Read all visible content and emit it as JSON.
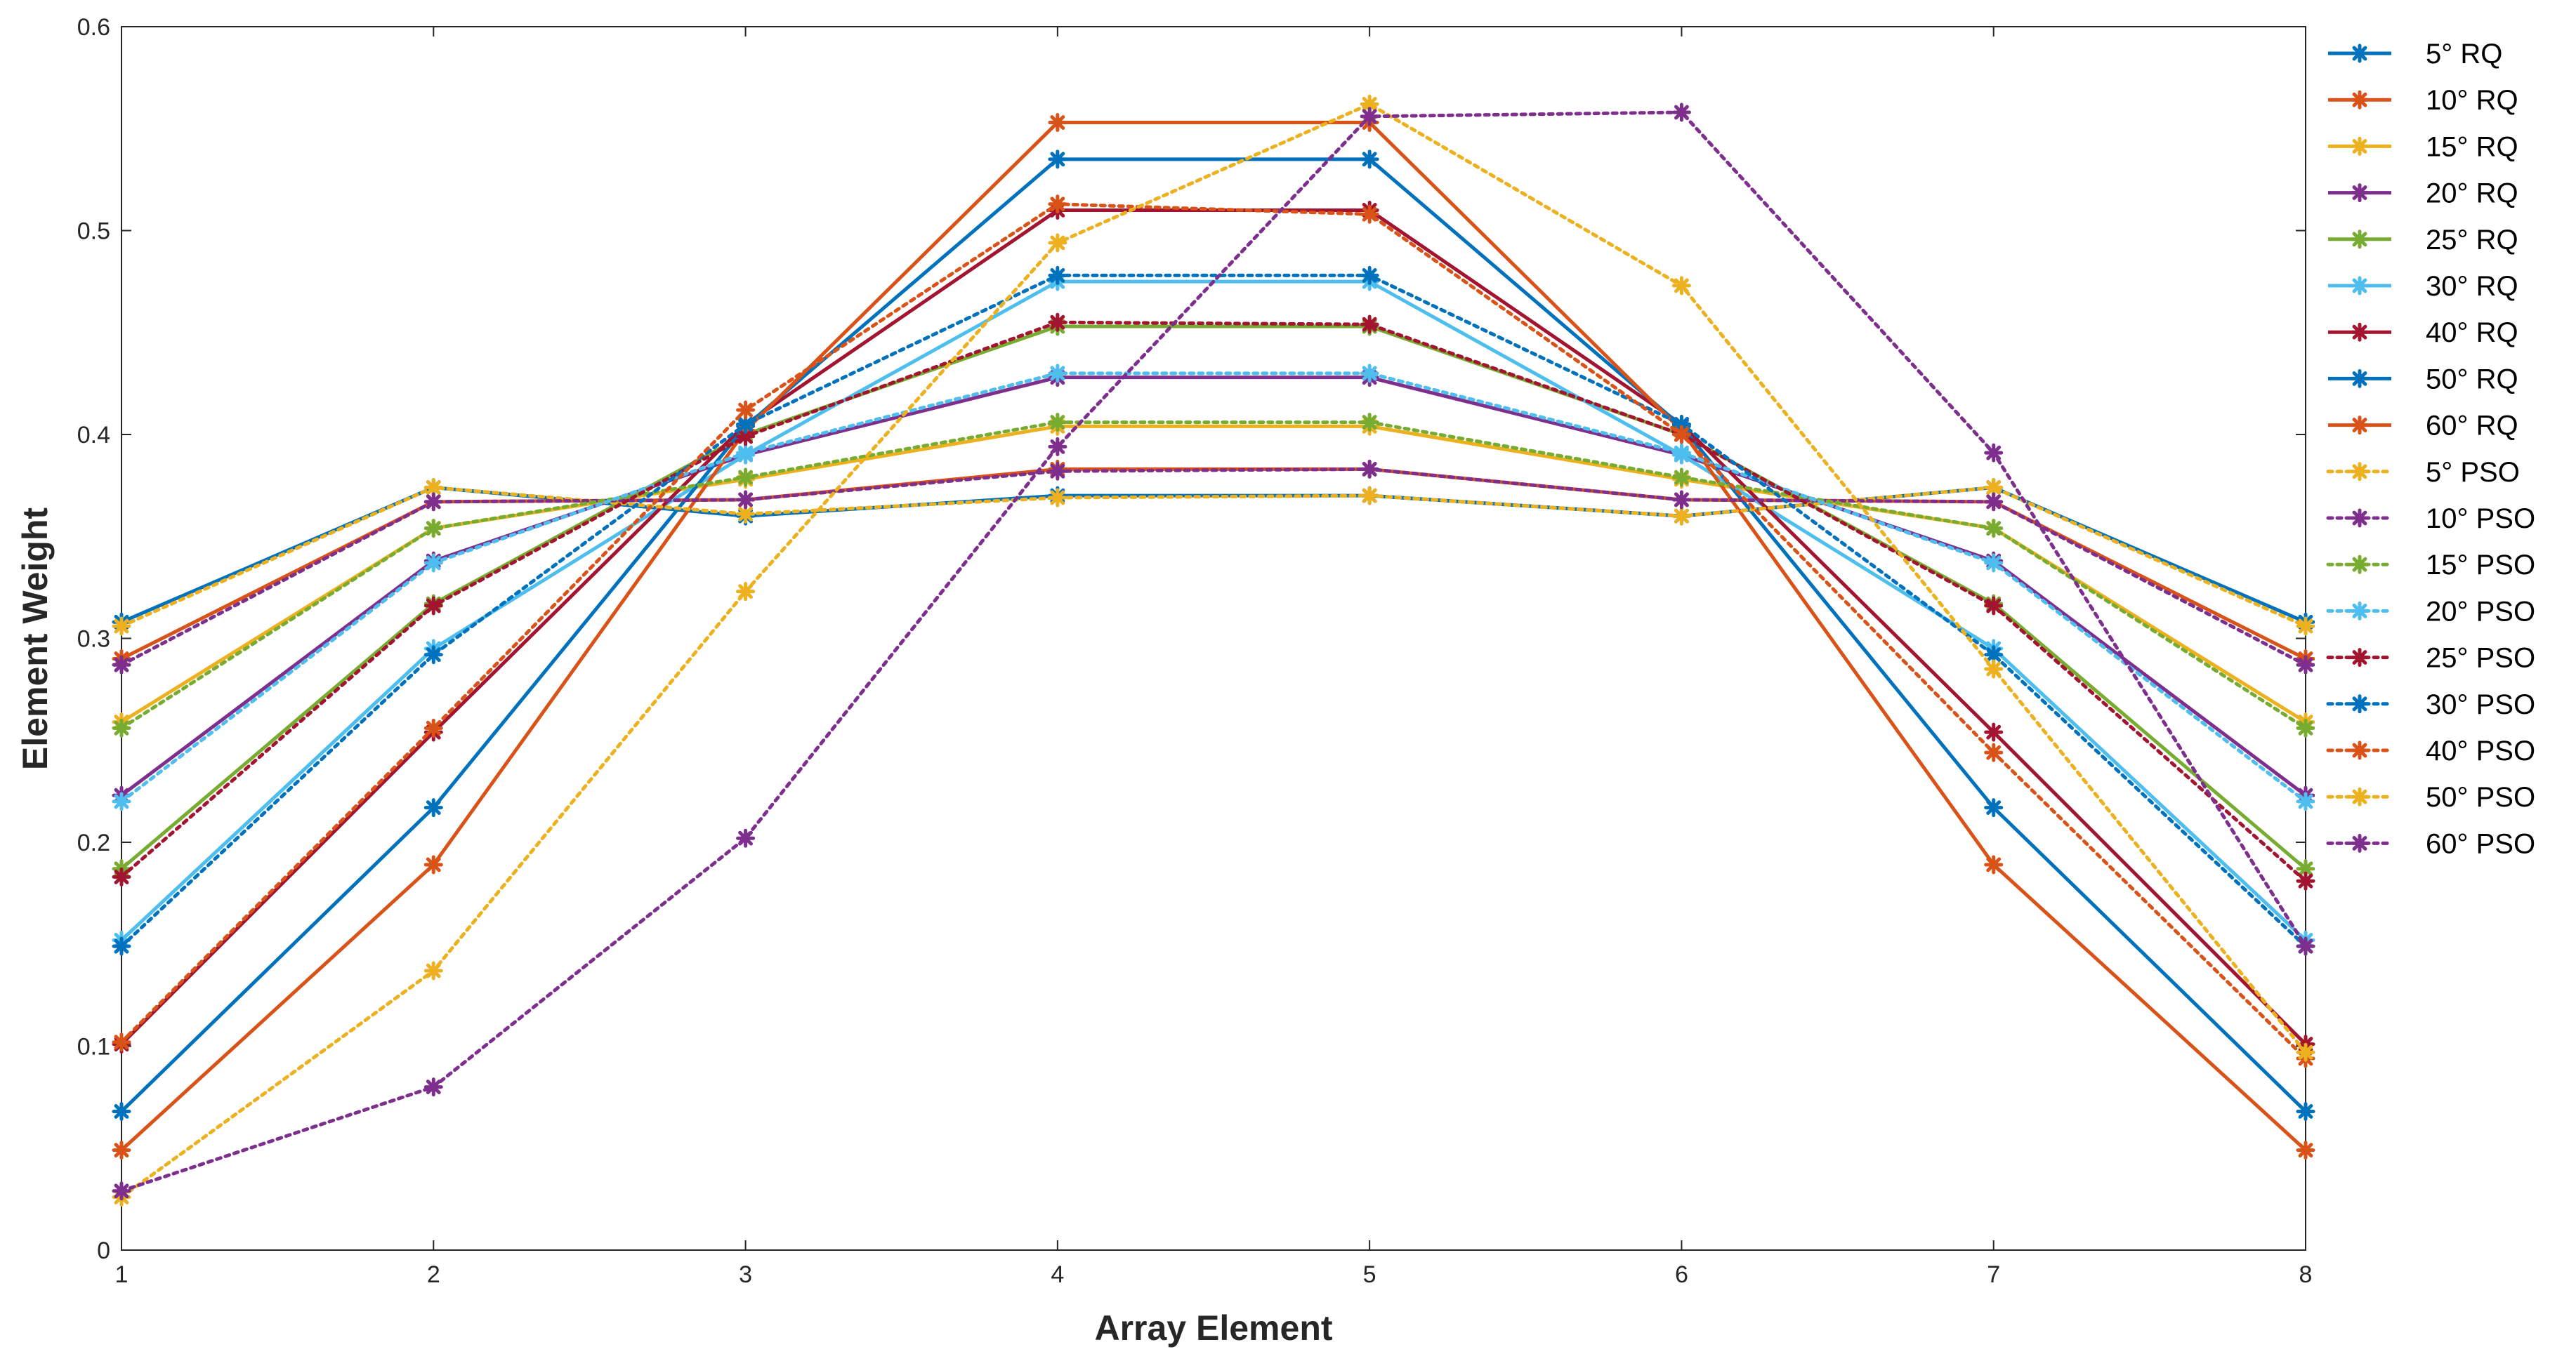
{
  "chart_data": {
    "type": "line",
    "title": "",
    "xlabel": "Array Element",
    "ylabel": "Element Weight",
    "x": [
      1,
      2,
      3,
      4,
      5,
      6,
      7,
      8
    ],
    "xlim": [
      1,
      8
    ],
    "ylim": [
      0,
      0.6
    ],
    "x_ticks": [
      "1",
      "2",
      "3",
      "4",
      "5",
      "6",
      "7",
      "8"
    ],
    "y_ticks": [
      "0",
      "0.1",
      "0.2",
      "0.3",
      "0.4",
      "0.5",
      "0.6"
    ],
    "grid": false,
    "legend_position": "outside-right",
    "series": [
      {
        "name": "5° RQ",
        "color": "#0072BD",
        "style": "solid",
        "values": [
          0.308,
          0.374,
          0.36,
          0.37,
          0.37,
          0.36,
          0.374,
          0.308
        ]
      },
      {
        "name": "10° RQ",
        "color": "#D95319",
        "style": "solid",
        "values": [
          0.29,
          0.367,
          0.368,
          0.383,
          0.383,
          0.368,
          0.367,
          0.29
        ]
      },
      {
        "name": "15° RQ",
        "color": "#EDB120",
        "style": "solid",
        "values": [
          0.259,
          0.354,
          0.378,
          0.404,
          0.404,
          0.378,
          0.354,
          0.259
        ]
      },
      {
        "name": "20° RQ",
        "color": "#7E2F8E",
        "style": "solid",
        "values": [
          0.223,
          0.338,
          0.39,
          0.428,
          0.428,
          0.39,
          0.338,
          0.223
        ]
      },
      {
        "name": "25° RQ",
        "color": "#77AC30",
        "style": "solid",
        "values": [
          0.187,
          0.317,
          0.4,
          0.453,
          0.453,
          0.4,
          0.317,
          0.187
        ]
      },
      {
        "name": "30° RQ",
        "color": "#4DBEEE",
        "style": "solid",
        "values": [
          0.152,
          0.295,
          0.39,
          0.475,
          0.475,
          0.39,
          0.295,
          0.152
        ]
      },
      {
        "name": "40° RQ",
        "color": "#A2142F",
        "style": "solid",
        "values": [
          0.101,
          0.254,
          0.405,
          0.51,
          0.51,
          0.405,
          0.254,
          0.101
        ]
      },
      {
        "name": "50° RQ",
        "color": "#0072BD",
        "style": "solid",
        "values": [
          0.068,
          0.217,
          0.404,
          0.535,
          0.535,
          0.404,
          0.217,
          0.068
        ]
      },
      {
        "name": "60° RQ",
        "color": "#D95319",
        "style": "solid",
        "values": [
          0.049,
          0.189,
          0.402,
          0.553,
          0.553,
          0.402,
          0.189,
          0.049
        ]
      },
      {
        "name": "5° PSO",
        "color": "#EDB120",
        "style": "dotted",
        "values": [
          0.306,
          0.374,
          0.361,
          0.369,
          0.37,
          0.36,
          0.374,
          0.306
        ]
      },
      {
        "name": "10° PSO",
        "color": "#7E2F8E",
        "style": "dotted",
        "values": [
          0.287,
          0.367,
          0.368,
          0.382,
          0.383,
          0.368,
          0.367,
          0.287
        ]
      },
      {
        "name": "15° PSO",
        "color": "#77AC30",
        "style": "dotted",
        "values": [
          0.256,
          0.354,
          0.379,
          0.406,
          0.406,
          0.379,
          0.354,
          0.256
        ]
      },
      {
        "name": "20° PSO",
        "color": "#4DBEEE",
        "style": "dotted",
        "values": [
          0.22,
          0.337,
          0.391,
          0.43,
          0.43,
          0.391,
          0.337,
          0.22
        ]
      },
      {
        "name": "25° PSO",
        "color": "#A2142F",
        "style": "dotted",
        "values": [
          0.183,
          0.316,
          0.399,
          0.455,
          0.454,
          0.4,
          0.316,
          0.181
        ]
      },
      {
        "name": "30° PSO",
        "color": "#0072BD",
        "style": "dotted",
        "values": [
          0.149,
          0.292,
          0.405,
          0.478,
          0.478,
          0.405,
          0.292,
          0.149
        ]
      },
      {
        "name": "40° PSO",
        "color": "#D95319",
        "style": "dotted",
        "values": [
          0.102,
          0.256,
          0.412,
          0.513,
          0.508,
          0.4,
          0.244,
          0.094
        ]
      },
      {
        "name": "50° PSO",
        "color": "#EDB120",
        "style": "dotted",
        "values": [
          0.026,
          0.137,
          0.323,
          0.494,
          0.562,
          0.473,
          0.285,
          0.097
        ]
      },
      {
        "name": "60° PSO",
        "color": "#7E2F8E",
        "style": "dotted",
        "values": [
          0.029,
          0.08,
          0.202,
          0.394,
          0.556,
          0.558,
          0.391,
          0.149
        ]
      }
    ]
  }
}
